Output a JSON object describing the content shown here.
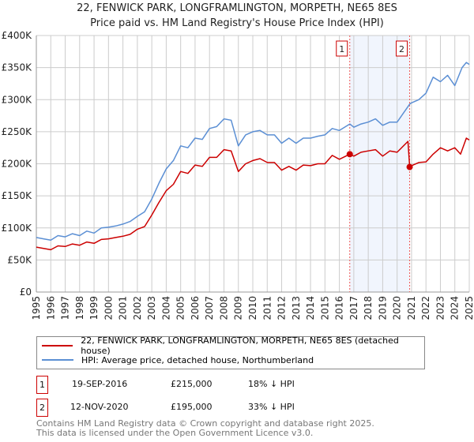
{
  "chart_data": {
    "type": "line",
    "title": "22, FENWICK PARK, LONGFRAMLINGTON, MORPETH, NE65 8ES",
    "subtitle": "Price paid vs. HM Land Registry's House Price Index (HPI)",
    "xlim": [
      1995,
      2025
    ],
    "ylim": [
      0,
      400000
    ],
    "grid": true,
    "y_ticks": [
      {
        "v": 0,
        "label": "£0"
      },
      {
        "v": 50000,
        "label": "£50K"
      },
      {
        "v": 100000,
        "label": "£100K"
      },
      {
        "v": 150000,
        "label": "£150K"
      },
      {
        "v": 200000,
        "label": "£200K"
      },
      {
        "v": 250000,
        "label": "£250K"
      },
      {
        "v": 300000,
        "label": "£300K"
      },
      {
        "v": 350000,
        "label": "£350K"
      },
      {
        "v": 400000,
        "label": "£400K"
      }
    ],
    "x_ticks": [
      "1995",
      "1996",
      "1997",
      "1998",
      "1999",
      "2000",
      "2001",
      "2002",
      "2003",
      "2004",
      "2005",
      "2006",
      "2007",
      "2008",
      "2009",
      "2010",
      "2011",
      "2012",
      "2013",
      "2014",
      "2015",
      "2016",
      "2017",
      "2018",
      "2019",
      "2020",
      "2021",
      "2022",
      "2023",
      "2024",
      "2025"
    ],
    "series": [
      {
        "name": "22, FENWICK PARK, LONGFRAMLINGTON, MORPETH, NE65 8ES (detached house)",
        "color": "#cc0000",
        "x": [
          1995,
          1996,
          1996.5,
          1997,
          1997.5,
          1998,
          1998.5,
          1999,
          1999.5,
          2000,
          2000.5,
          2001,
          2001.5,
          2002,
          2002.5,
          2003,
          2003.5,
          2004,
          2004.5,
          2005,
          2005.5,
          2006,
          2006.5,
          2007,
          2007.5,
          2008,
          2008.5,
          2009,
          2009.5,
          2010,
          2010.5,
          2011,
          2011.5,
          2012,
          2012.5,
          2013,
          2013.5,
          2014,
          2014.5,
          2015,
          2015.5,
          2016,
          2016.72,
          2017,
          2017.5,
          2018,
          2018.5,
          2019,
          2019.5,
          2020,
          2020.75,
          2020.87,
          2021,
          2021.5,
          2022,
          2022.5,
          2023,
          2023.5,
          2024,
          2024.4,
          2024.8,
          2025
        ],
        "y": [
          70000,
          66000,
          72000,
          71000,
          75000,
          73000,
          78000,
          76000,
          82000,
          83000,
          85000,
          87000,
          90000,
          98000,
          102000,
          120000,
          140000,
          158000,
          168000,
          188000,
          185000,
          198000,
          196000,
          210000,
          210000,
          222000,
          220000,
          188000,
          200000,
          205000,
          208000,
          202000,
          202000,
          190000,
          196000,
          190000,
          198000,
          197000,
          200000,
          200000,
          213000,
          207000,
          215000,
          212000,
          218000,
          220000,
          222000,
          212000,
          220000,
          218000,
          235000,
          195000,
          197000,
          202000,
          203000,
          215000,
          225000,
          220000,
          225000,
          215000,
          240000,
          237000
        ]
      },
      {
        "name": "HPI: Average price, detached house, Northumberland",
        "color": "#5b8fd4",
        "x": [
          1995,
          1995.5,
          1996,
          1996.5,
          1997,
          1997.5,
          1998,
          1998.5,
          1999,
          1999.5,
          2000,
          2000.5,
          2001,
          2001.5,
          2002,
          2002.5,
          2003,
          2003.5,
          2004,
          2004.5,
          2005,
          2005.5,
          2006,
          2006.5,
          2007,
          2007.5,
          2008,
          2008.5,
          2009,
          2009.5,
          2010,
          2010.5,
          2011,
          2011.5,
          2012,
          2012.5,
          2013,
          2013.5,
          2014,
          2014.5,
          2015,
          2015.5,
          2016,
          2016.72,
          2017,
          2017.5,
          2018,
          2018.5,
          2019,
          2019.5,
          2020,
          2020.87,
          2021,
          2021.5,
          2022,
          2022.5,
          2023,
          2023.5,
          2024,
          2024.5,
          2024.8,
          2025
        ],
        "y": [
          85000,
          83000,
          81000,
          88000,
          86000,
          91000,
          88000,
          95000,
          92000,
          100000,
          101000,
          103000,
          106000,
          110000,
          118000,
          125000,
          145000,
          170000,
          192000,
          205000,
          228000,
          225000,
          240000,
          238000,
          255000,
          258000,
          270000,
          268000,
          228000,
          245000,
          250000,
          252000,
          245000,
          245000,
          232000,
          240000,
          232000,
          240000,
          240000,
          243000,
          245000,
          255000,
          252000,
          262000,
          257000,
          262000,
          265000,
          270000,
          260000,
          265000,
          265000,
          293000,
          295000,
          300000,
          310000,
          335000,
          328000,
          338000,
          322000,
          350000,
          358000,
          355000
        ]
      }
    ],
    "annotations": [
      {
        "id": "1",
        "x": 2016.72,
        "y": 215000
      },
      {
        "id": "2",
        "x": 2020.87,
        "y": 195000
      }
    ]
  },
  "legend": {
    "items": [
      {
        "label": "22, FENWICK PARK, LONGFRAMLINGTON, MORPETH, NE65 8ES (detached house)",
        "color": "#cc0000"
      },
      {
        "label": "HPI: Average price, detached house, Northumberland",
        "color": "#5b8fd4"
      }
    ]
  },
  "sales": [
    {
      "id": "1",
      "date": "19-SEP-2016",
      "price": "£215,000",
      "hpi": "18% ↓ HPI"
    },
    {
      "id": "2",
      "date": "12-NOV-2020",
      "price": "£195,000",
      "hpi": "33% ↓ HPI"
    }
  ],
  "footer": {
    "line1": "Contains HM Land Registry data © Crown copyright and database right 2025.",
    "line2": "This data is licensed under the Open Government Licence v3.0."
  }
}
